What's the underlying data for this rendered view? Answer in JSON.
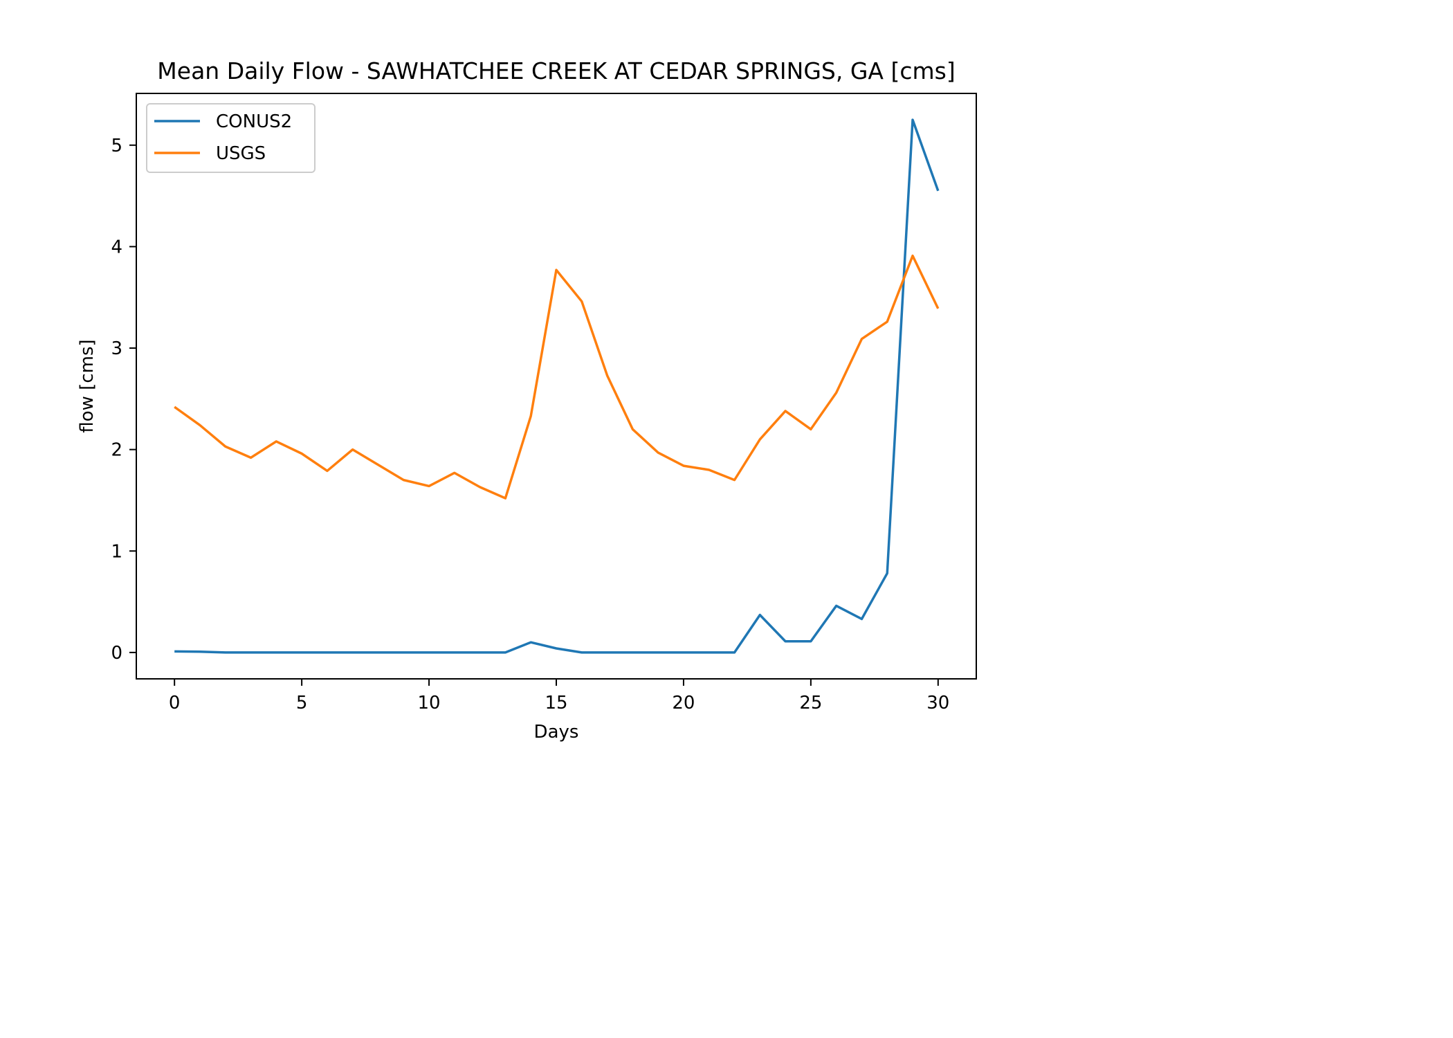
{
  "chart_data": {
    "type": "line",
    "title": "Mean Daily Flow - SAWHATCHEE CREEK AT CEDAR SPRINGS, GA [cms]",
    "xlabel": "Days",
    "ylabel": "flow [cms]",
    "xlim": [
      -1.5,
      31.5
    ],
    "ylim": [
      -0.26,
      5.51
    ],
    "xticks": [
      0,
      5,
      10,
      15,
      20,
      25,
      30
    ],
    "yticks": [
      0,
      1,
      2,
      3,
      4,
      5
    ],
    "grid": false,
    "legend_position": "upper-left",
    "x": [
      0,
      1,
      2,
      3,
      4,
      5,
      6,
      7,
      8,
      9,
      10,
      11,
      12,
      13,
      14,
      15,
      16,
      17,
      18,
      19,
      20,
      21,
      22,
      23,
      24,
      25,
      26,
      27,
      28,
      29,
      30
    ],
    "series": [
      {
        "name": "CONUS2",
        "color": "#1f77b4",
        "values": [
          0.01,
          0.008,
          0,
          0,
          0,
          0,
          0,
          0,
          0,
          0,
          0,
          0,
          0,
          0,
          0.1,
          0.04,
          0,
          0,
          0,
          0,
          0,
          0,
          0,
          0.37,
          0.11,
          0.11,
          0.46,
          0.33,
          0.78,
          5.25,
          4.55
        ]
      },
      {
        "name": "USGS",
        "color": "#ff7f0e",
        "values": [
          2.42,
          2.24,
          2.03,
          1.92,
          2.08,
          1.96,
          1.79,
          2.0,
          1.85,
          1.7,
          1.64,
          1.77,
          1.63,
          1.52,
          2.33,
          3.77,
          3.46,
          2.73,
          2.2,
          1.97,
          1.84,
          1.8,
          1.7,
          2.1,
          2.38,
          2.2,
          2.56,
          3.09,
          3.26,
          3.91,
          3.39
        ]
      }
    ]
  }
}
